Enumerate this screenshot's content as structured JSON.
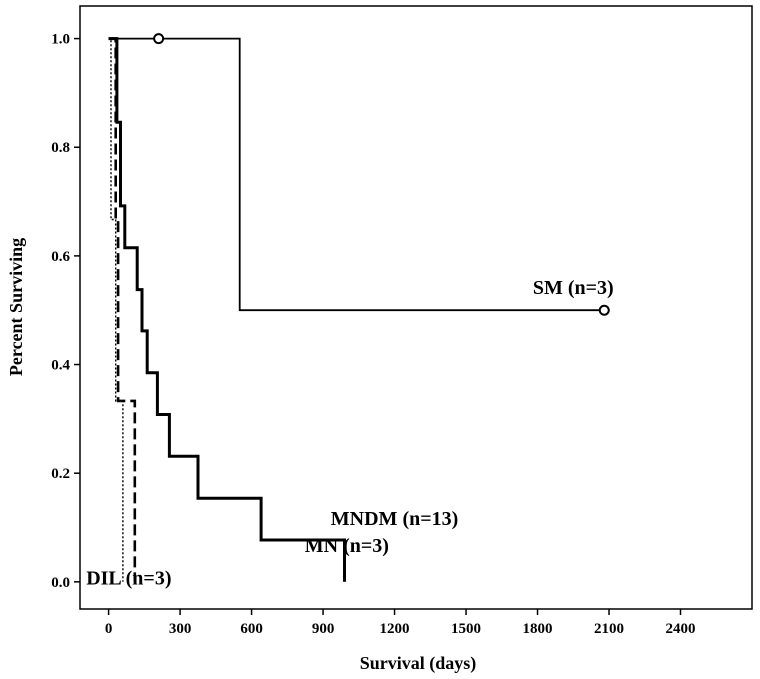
{
  "chart_data": {
    "type": "line",
    "subtype": "kaplan-meier step survival curves",
    "title": "",
    "xlabel": "Survival (days)",
    "ylabel": "Percent Surviving",
    "xlim": [
      -120,
      2700
    ],
    "ylim": [
      -0.05,
      1.06
    ],
    "xticks": [
      0,
      300,
      600,
      900,
      1200,
      1500,
      1800,
      2100,
      2400
    ],
    "yticks": [
      0.0,
      0.2,
      0.4,
      0.6,
      0.8,
      1.0
    ],
    "ytick_labels": [
      "0.0",
      "0.2",
      "0.4",
      "0.6",
      "0.8",
      "1.0"
    ],
    "grid": false,
    "series": [
      {
        "name": "SM (n=3)",
        "style": "solid-thin",
        "color": "#000000",
        "label_at": [
          1950,
          0.53
        ],
        "points": [
          [
            0,
            1.0
          ],
          [
            550,
            1.0
          ],
          [
            550,
            0.5
          ],
          [
            2080,
            0.5
          ]
        ],
        "censored": [
          [
            210,
            1.0
          ],
          [
            2080,
            0.5
          ]
        ]
      },
      {
        "name": "MNDM (n=13)",
        "style": "solid-thick",
        "color": "#000000",
        "label_at": [
          1200,
          0.105
        ],
        "points": [
          [
            0,
            1.0
          ],
          [
            35,
            1.0
          ],
          [
            35,
            0.846
          ],
          [
            50,
            0.846
          ],
          [
            50,
            0.692
          ],
          [
            68,
            0.692
          ],
          [
            68,
            0.615
          ],
          [
            120,
            0.615
          ],
          [
            120,
            0.538
          ],
          [
            140,
            0.538
          ],
          [
            140,
            0.462
          ],
          [
            162,
            0.462
          ],
          [
            162,
            0.385
          ],
          [
            205,
            0.385
          ],
          [
            205,
            0.308
          ],
          [
            255,
            0.308
          ],
          [
            255,
            0.231
          ],
          [
            375,
            0.231
          ],
          [
            375,
            0.154
          ],
          [
            640,
            0.154
          ],
          [
            640,
            0.077
          ],
          [
            990,
            0.077
          ],
          [
            990,
            0.0
          ]
        ]
      },
      {
        "name": "MN (n=3)",
        "style": "dashed",
        "color": "#000000",
        "label_at": [
          1000,
          0.055
        ],
        "points": [
          [
            0,
            1.0
          ],
          [
            30,
            1.0
          ],
          [
            30,
            0.667
          ],
          [
            40,
            0.667
          ],
          [
            40,
            0.333
          ],
          [
            110,
            0.333
          ],
          [
            110,
            0.0
          ]
        ]
      },
      {
        "name": "DIL (n=3)",
        "style": "dotted",
        "color": "#000000",
        "label_at": [
          85,
          -0.005
        ],
        "points": [
          [
            0,
            1.0
          ],
          [
            10,
            1.0
          ],
          [
            10,
            0.667
          ],
          [
            30,
            0.667
          ],
          [
            30,
            0.333
          ],
          [
            60,
            0.333
          ],
          [
            60,
            0.0
          ]
        ]
      }
    ]
  }
}
